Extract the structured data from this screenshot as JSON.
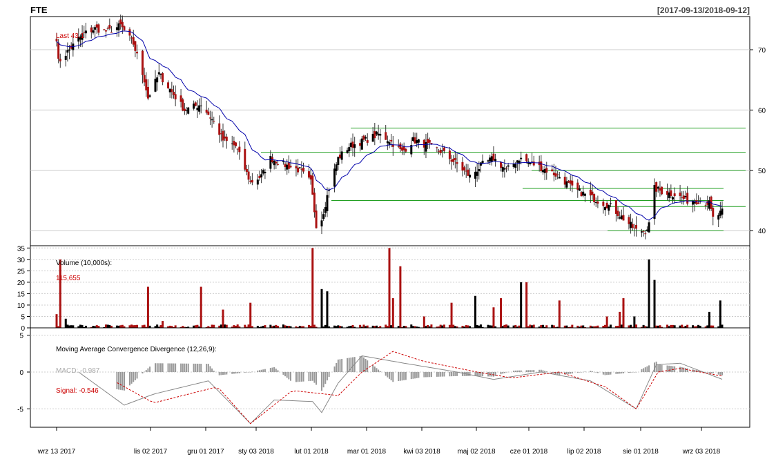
{
  "header": {
    "symbol": "FTE",
    "date_range": "[2017-09-13/2018-09-12]"
  },
  "price_panel": {
    "last_label": "Last 43.1",
    "y_ticks": [
      40,
      50,
      60,
      70
    ],
    "ylim": [
      37.5,
      75.5
    ],
    "ma_color": "#0000aa",
    "up_color": "#000000",
    "down_color": "#aa1111"
  },
  "volume_panel": {
    "label": "Volume (10,000s):",
    "value_label": "115,655",
    "y_ticks": [
      0,
      5,
      10,
      15,
      20,
      25,
      30,
      35
    ],
    "ylim": [
      0,
      36
    ]
  },
  "macd_panel": {
    "title": "Moving Average Convergence Divergence (12,26,9):",
    "macd_label": "MACD: -0.987",
    "signal_label": "Signal: -0.546",
    "y_ticks": [
      -5,
      0,
      5
    ],
    "ylim": [
      -7.5,
      6
    ]
  },
  "x_axis": {
    "ticks": [
      "wrz 13 2017",
      "lis 02 2017",
      "gru 01 2017",
      "sty 03 2018",
      "lut 01 2018",
      "mar 01 2018",
      "kwi 03 2018",
      "maj 02 2018",
      "cze 01 2018",
      "lip 02 2018",
      "sie 01 2018",
      "wrz 03 2018"
    ]
  },
  "chart_data": [
    {
      "type": "candlestick",
      "x_range": [
        "2017-09-13",
        "2018-09-12"
      ],
      "close_anchors": [
        [
          "2017-09-13",
          72
        ],
        [
          "2017-09-14",
          68
        ],
        [
          "2017-09-20",
          70
        ],
        [
          "2017-09-27",
          72.5
        ],
        [
          "2017-10-04",
          73.5
        ],
        [
          "2017-10-11",
          73
        ],
        [
          "2017-10-18",
          74
        ],
        [
          "2017-10-25",
          71
        ],
        [
          "2017-10-31",
          65
        ],
        [
          "2017-11-02",
          62
        ],
        [
          "2017-11-08",
          66
        ],
        [
          "2017-11-15",
          63
        ],
        [
          "2017-11-22",
          60
        ],
        [
          "2017-12-01",
          61
        ],
        [
          "2017-12-08",
          58
        ],
        [
          "2017-12-13",
          55
        ],
        [
          "2017-12-20",
          54
        ],
        [
          "2017-12-28",
          48
        ],
        [
          "2018-01-03",
          49
        ],
        [
          "2018-01-08",
          52
        ],
        [
          "2018-01-15",
          51
        ],
        [
          "2018-01-24",
          50
        ],
        [
          "2018-01-30",
          48
        ],
        [
          "2018-02-02",
          41
        ],
        [
          "2018-02-05",
          42
        ],
        [
          "2018-02-09",
          47
        ],
        [
          "2018-02-14",
          52
        ],
        [
          "2018-02-20",
          54
        ],
        [
          "2018-03-01",
          55
        ],
        [
          "2018-03-08",
          56
        ],
        [
          "2018-03-14",
          55
        ],
        [
          "2018-03-21",
          53
        ],
        [
          "2018-03-27",
          55
        ],
        [
          "2018-04-05",
          54
        ],
        [
          "2018-04-12",
          53
        ],
        [
          "2018-04-20",
          51
        ],
        [
          "2018-04-27",
          49
        ],
        [
          "2018-05-04",
          51
        ],
        [
          "2018-05-10",
          52
        ],
        [
          "2018-05-17",
          50
        ],
        [
          "2018-05-24",
          52
        ],
        [
          "2018-06-01",
          51
        ],
        [
          "2018-06-08",
          50
        ],
        [
          "2018-06-15",
          49
        ],
        [
          "2018-06-22",
          47
        ],
        [
          "2018-06-29",
          46
        ],
        [
          "2018-07-06",
          45
        ],
        [
          "2018-07-13",
          44
        ],
        [
          "2018-07-20",
          42
        ],
        [
          "2018-07-27",
          40
        ],
        [
          "2018-08-01",
          40
        ],
        [
          "2018-08-03",
          41
        ],
        [
          "2018-08-06",
          47
        ],
        [
          "2018-08-10",
          46.5
        ],
        [
          "2018-08-17",
          46
        ],
        [
          "2018-08-24",
          45
        ],
        [
          "2018-08-31",
          45
        ],
        [
          "2018-09-05",
          44.5
        ],
        [
          "2018-09-07",
          42
        ],
        [
          "2018-09-12",
          43.1
        ]
      ],
      "support_resistance_levels": [
        40,
        44,
        45,
        47,
        50,
        53,
        57
      ],
      "last": 43.1
    },
    {
      "type": "bar",
      "name": "Volume (10,000s)",
      "spikes": [
        [
          "2017-09-13",
          6
        ],
        [
          "2017-09-15",
          30
        ],
        [
          "2017-09-18",
          4
        ],
        [
          "2017-11-02",
          18
        ],
        [
          "2017-11-10",
          3
        ],
        [
          "2017-12-01",
          18
        ],
        [
          "2017-12-13",
          8
        ],
        [
          "2017-12-28",
          11
        ],
        [
          "2018-01-31",
          35
        ],
        [
          "2018-02-05",
          17
        ],
        [
          "2018-02-08",
          16
        ],
        [
          "2018-03-14",
          35
        ],
        [
          "2018-03-16",
          13
        ],
        [
          "2018-03-20",
          27
        ],
        [
          "2018-04-02",
          5
        ],
        [
          "2018-04-17",
          11
        ],
        [
          "2018-04-30",
          14
        ],
        [
          "2018-05-10",
          9
        ],
        [
          "2018-05-14",
          13
        ],
        [
          "2018-05-25",
          20
        ],
        [
          "2018-05-28",
          20
        ],
        [
          "2018-06-15",
          12
        ],
        [
          "2018-07-11",
          5
        ],
        [
          "2018-07-18",
          7
        ],
        [
          "2018-07-20",
          13
        ],
        [
          "2018-07-26",
          5
        ],
        [
          "2018-08-03",
          30
        ],
        [
          "2018-08-06",
          21
        ],
        [
          "2018-09-05",
          7
        ],
        [
          "2018-09-11",
          12
        ]
      ],
      "last": 11.5655
    },
    {
      "type": "line",
      "title": "Moving Average Convergence Divergence (12,26,9):",
      "series": [
        {
          "name": "MACD",
          "color": "#888888",
          "anchors": [
            [
              "2017-09-25",
              0
            ],
            [
              "2017-10-20",
              -4.5
            ],
            [
              "2017-11-05",
              -3
            ],
            [
              "2017-12-05",
              -1.2
            ],
            [
              "2017-12-28",
              -7
            ],
            [
              "2018-01-10",
              -3.8
            ],
            [
              "2018-01-31",
              -4
            ],
            [
              "2018-02-05",
              -5.5
            ],
            [
              "2018-02-14",
              -1.5
            ],
            [
              "2018-02-27",
              2.2
            ],
            [
              "2018-03-22",
              1.2
            ],
            [
              "2018-04-20",
              0
            ],
            [
              "2018-05-10",
              -1
            ],
            [
              "2018-06-05",
              0
            ],
            [
              "2018-07-02",
              -1.2
            ],
            [
              "2018-07-27",
              -5
            ],
            [
              "2018-08-07",
              1
            ],
            [
              "2018-08-20",
              1.2
            ],
            [
              "2018-09-12",
              -0.987
            ]
          ]
        },
        {
          "name": "Signal",
          "color": "#cc0000",
          "anchors": [
            [
              "2017-10-15",
              -1.3
            ],
            [
              "2017-11-05",
              -4.2
            ],
            [
              "2017-12-10",
              -2
            ],
            [
              "2017-12-28",
              -7
            ],
            [
              "2018-01-20",
              -2.5
            ],
            [
              "2018-02-14",
              -3.2
            ],
            [
              "2018-02-27",
              0
            ],
            [
              "2018-03-16",
              2.8
            ],
            [
              "2018-04-01",
              1.5
            ],
            [
              "2018-05-01",
              0
            ],
            [
              "2018-05-20",
              -0.8
            ],
            [
              "2018-06-15",
              0
            ],
            [
              "2018-07-10",
              -2
            ],
            [
              "2018-07-27",
              -5
            ],
            [
              "2018-08-08",
              0
            ],
            [
              "2018-08-20",
              0.5
            ],
            [
              "2018-09-12",
              -0.546
            ]
          ]
        }
      ],
      "macd_last": -0.987,
      "signal_last": -0.546
    }
  ]
}
